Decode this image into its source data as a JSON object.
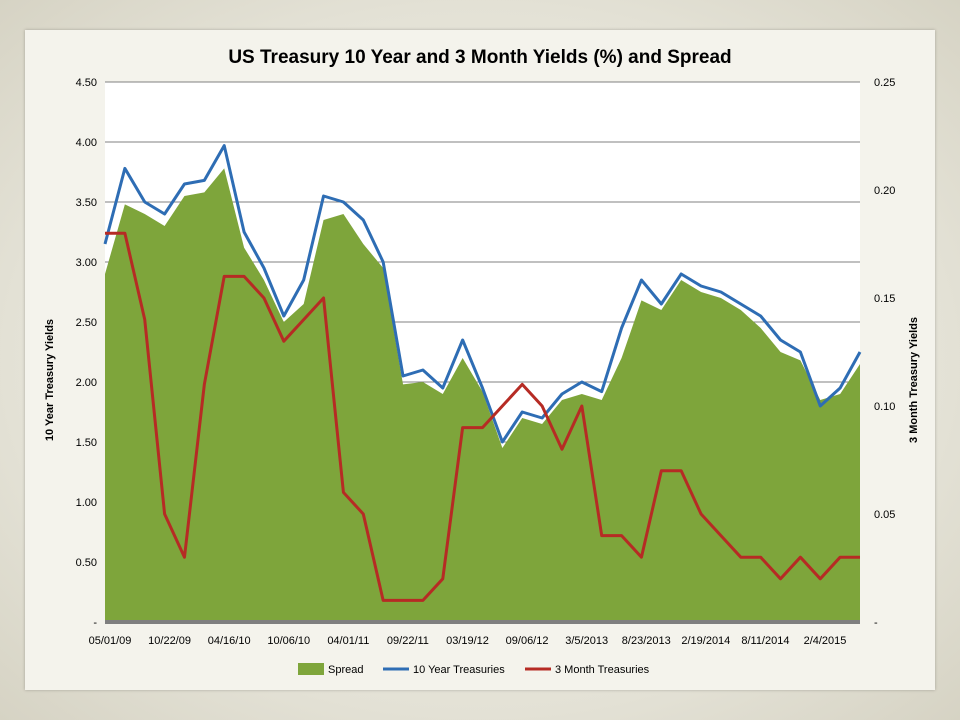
{
  "chart_data": {
    "type": "area",
    "title": "US Treasury 10 Year and 3 Month Yields (%) and Spread",
    "ylabel_left": "10 Year Treasury Yields",
    "ylabel_right": "3 Month Treasury Yields",
    "ylim_left": [
      0,
      4.5
    ],
    "ylim_right": [
      0,
      0.25
    ],
    "y_ticks_left": [
      "-",
      "0.50",
      "1.00",
      "1.50",
      "2.00",
      "2.50",
      "3.00",
      "3.50",
      "4.00",
      "4.50"
    ],
    "y_ticks_right": [
      "-",
      "0.05",
      "0.10",
      "0.15",
      "0.20",
      "0.25"
    ],
    "x_ticks": [
      "05/01/09",
      "10/22/09",
      "04/16/10",
      "10/06/10",
      "04/01/11",
      "09/22/11",
      "03/19/12",
      "09/06/12",
      "3/5/2013",
      "8/23/2013",
      "2/19/2014",
      "8/11/2014",
      "2/4/2015"
    ],
    "grid": true,
    "legend_position": "bottom",
    "x": [
      "05/01/09",
      "07/01/09",
      "08/15/09",
      "10/22/09",
      "12/15/09",
      "02/15/10",
      "04/16/10",
      "06/01/10",
      "08/01/10",
      "10/06/10",
      "12/01/10",
      "02/10/11",
      "04/01/11",
      "06/01/11",
      "07/25/11",
      "09/22/11",
      "11/15/11",
      "01/15/12",
      "03/19/12",
      "05/01/12",
      "07/25/12",
      "09/06/12",
      "11/01/12",
      "01/15/13",
      "3/5/2013",
      "5/1/2013",
      "6/25/2013",
      "8/23/2013",
      "10/15/2013",
      "12/15/2013",
      "2/19/2014",
      "4/15/2014",
      "6/15/2014",
      "8/11/2014",
      "10/15/2014",
      "12/15/2014",
      "2/4/2015",
      "4/1/2015",
      "5/20/2015"
    ],
    "series": [
      {
        "name": "Spread",
        "axis": "left",
        "color": "#7ea53b",
        "values": [
          2.9,
          3.48,
          3.4,
          3.3,
          3.55,
          3.58,
          3.78,
          3.12,
          2.85,
          2.5,
          2.65,
          3.35,
          3.4,
          3.15,
          2.95,
          1.98,
          2.0,
          1.9,
          2.2,
          1.92,
          1.45,
          1.7,
          1.65,
          1.85,
          1.9,
          1.85,
          2.2,
          2.68,
          2.6,
          2.85,
          2.75,
          2.7,
          2.6,
          2.45,
          2.25,
          2.18,
          1.85,
          1.9,
          2.15
        ]
      },
      {
        "name": "10 Year Treasuries",
        "axis": "left",
        "color": "#2e6db4",
        "values": [
          3.15,
          3.78,
          3.5,
          3.4,
          3.65,
          3.68,
          3.97,
          3.25,
          2.95,
          2.55,
          2.85,
          3.55,
          3.5,
          3.35,
          3.0,
          2.05,
          2.1,
          1.95,
          2.35,
          1.95,
          1.5,
          1.75,
          1.7,
          1.9,
          2.0,
          1.92,
          2.45,
          2.85,
          2.65,
          2.9,
          2.8,
          2.75,
          2.65,
          2.55,
          2.35,
          2.25,
          1.8,
          1.95,
          2.25
        ]
      },
      {
        "name": "3 Month Treasuries",
        "axis": "right",
        "color": "#b62b24",
        "values": [
          0.18,
          0.18,
          0.14,
          0.05,
          0.03,
          0.11,
          0.16,
          0.16,
          0.15,
          0.13,
          0.14,
          0.15,
          0.06,
          0.05,
          0.01,
          0.01,
          0.01,
          0.02,
          0.09,
          0.09,
          0.1,
          0.11,
          0.1,
          0.08,
          0.1,
          0.04,
          0.04,
          0.03,
          0.07,
          0.07,
          0.05,
          0.04,
          0.03,
          0.03,
          0.02,
          0.03,
          0.02,
          0.03,
          0.03
        ]
      }
    ]
  }
}
